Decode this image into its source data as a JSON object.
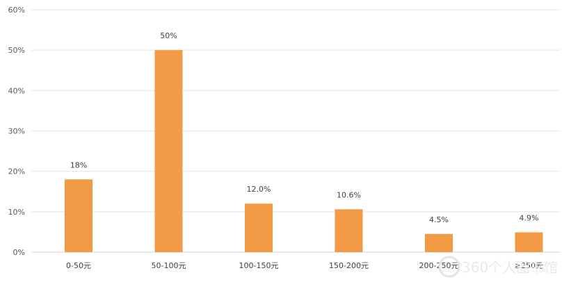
{
  "chart_data": {
    "type": "bar",
    "categories": [
      "0-50元",
      "50-100元",
      "100-150元",
      "150-200元",
      "200-250元",
      "≥250元"
    ],
    "values": [
      18,
      50,
      12.0,
      10.6,
      4.5,
      4.9
    ],
    "data_labels": [
      "18%",
      "50%",
      "12.0%",
      "10.6%",
      "4.5%",
      "4.9%"
    ],
    "ylim": [
      0,
      60
    ],
    "yticks": [
      0,
      10,
      20,
      30,
      40,
      50,
      60
    ],
    "ytick_labels": [
      "0%",
      "10%",
      "20%",
      "30%",
      "40%",
      "50%",
      "60%"
    ],
    "grid": true,
    "legend": "none",
    "bar_color": "#f39a45",
    "title": "",
    "xlabel": "",
    "ylabel": ""
  },
  "watermark": "360个人图书馆"
}
